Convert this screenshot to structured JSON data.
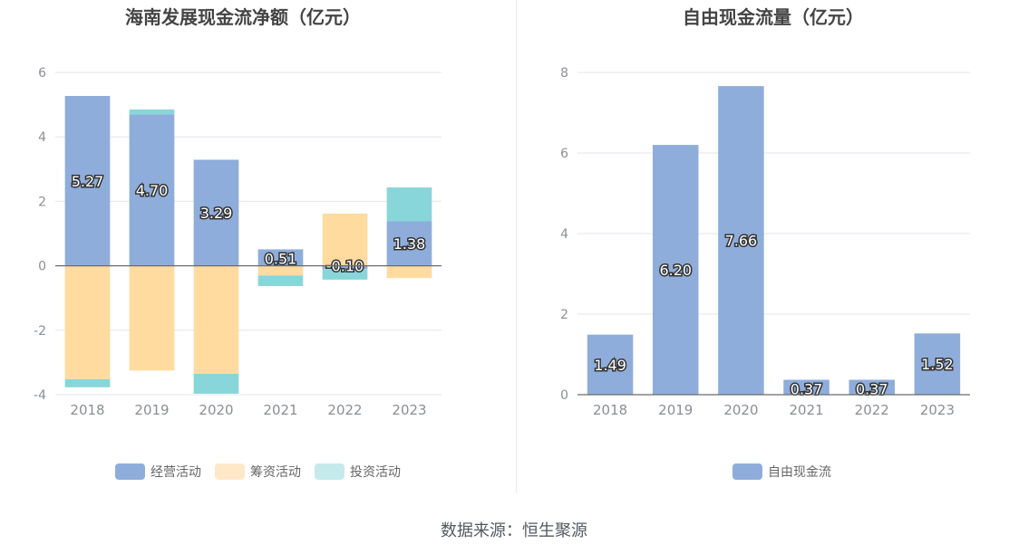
{
  "footer": {
    "source": "数据来源：恒生聚源"
  },
  "colors": {
    "operating": "#8eaddb",
    "financing": "#ffdba0",
    "investing": "#88d6da",
    "free_cash_flow": "#8eaddb",
    "axis": "#6b6b6b",
    "grid": "#e3e6ee",
    "tick": "#8a8f96",
    "title": "#444444",
    "legend_text": "#666666"
  },
  "chart_data": [
    {
      "type": "bar",
      "stacked": true,
      "title": "海南发展现金流净额（亿元）",
      "xlabel": "",
      "ylabel": "",
      "categories": [
        "2018",
        "2019",
        "2020",
        "2021",
        "2022",
        "2023"
      ],
      "ylim": [
        -4,
        6
      ],
      "yticks": [
        6,
        4,
        2,
        0,
        -2,
        -4
      ],
      "grid": true,
      "legend_position": "bottom",
      "series": [
        {
          "name": "经营活动",
          "values": [
            5.27,
            4.7,
            3.29,
            0.51,
            -0.1,
            1.38
          ],
          "labels": [
            "5.27",
            "4.70",
            "3.29",
            "0.51",
            "-0.10",
            "1.38"
          ]
        },
        {
          "name": "筹资活动",
          "values": [
            -3.52,
            -3.25,
            -3.35,
            -0.3,
            1.62,
            -0.38
          ]
        },
        {
          "name": "投资活动",
          "values": [
            -0.25,
            0.15,
            -0.62,
            -0.33,
            -0.33,
            1.05
          ]
        }
      ]
    },
    {
      "type": "bar",
      "title": "自由现金流量（亿元）",
      "xlabel": "",
      "ylabel": "",
      "categories": [
        "2018",
        "2019",
        "2020",
        "2021",
        "2022",
        "2023"
      ],
      "ylim": [
        0,
        8
      ],
      "yticks": [
        8,
        6,
        4,
        2,
        0
      ],
      "grid": true,
      "legend_position": "bottom",
      "series": [
        {
          "name": "自由现金流",
          "values": [
            1.49,
            6.2,
            7.66,
            0.37,
            0.37,
            1.52
          ],
          "labels": [
            "1.49",
            "6.20",
            "7.66",
            "0.37",
            "0.37",
            "1.52"
          ]
        }
      ]
    }
  ]
}
